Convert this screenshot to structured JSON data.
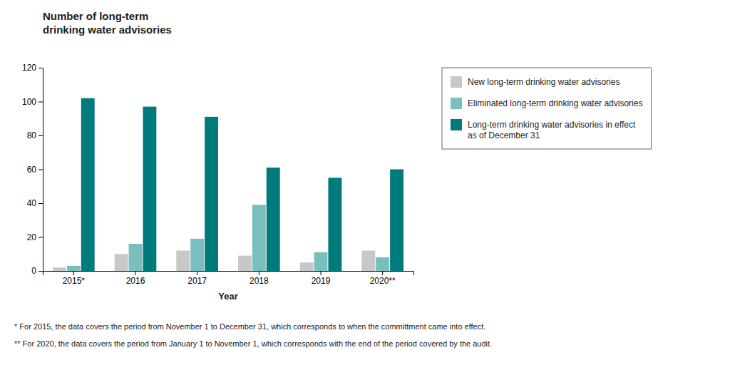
{
  "chart_data": {
    "type": "bar",
    "title": "Number of long-term\ndrinking water advisories",
    "x_label": "Year",
    "categories": [
      "2015*",
      "2016",
      "2017",
      "2018",
      "2019",
      "2020**"
    ],
    "series": [
      {
        "name": "New long-term drinking water advisories",
        "color": "#c8c8c8",
        "values": [
          2,
          10,
          12,
          9,
          5,
          12
        ]
      },
      {
        "name": "Eliminated long-term drinking water advisories",
        "color": "#7abebe",
        "values": [
          3,
          16,
          19,
          39,
          11,
          8
        ]
      },
      {
        "name": "Long-term drinking water advisories in effect\nas of December 31",
        "color": "#007b7b",
        "values": [
          102,
          97,
          91,
          61,
          55,
          60
        ]
      }
    ],
    "ylim": [
      0,
      120
    ],
    "yticks": [
      0,
      20,
      40,
      60,
      80,
      100,
      120
    ],
    "grid": false,
    "legend": "right",
    "annotations": [
      "* For 2015, the data covers the period from November 1 to December 31, which corresponds to when the committment came into effect.",
      "** For 2020, the data covers the period from January 1 to November 1, which corresponds with the end of the period covered by the audit."
    ]
  }
}
